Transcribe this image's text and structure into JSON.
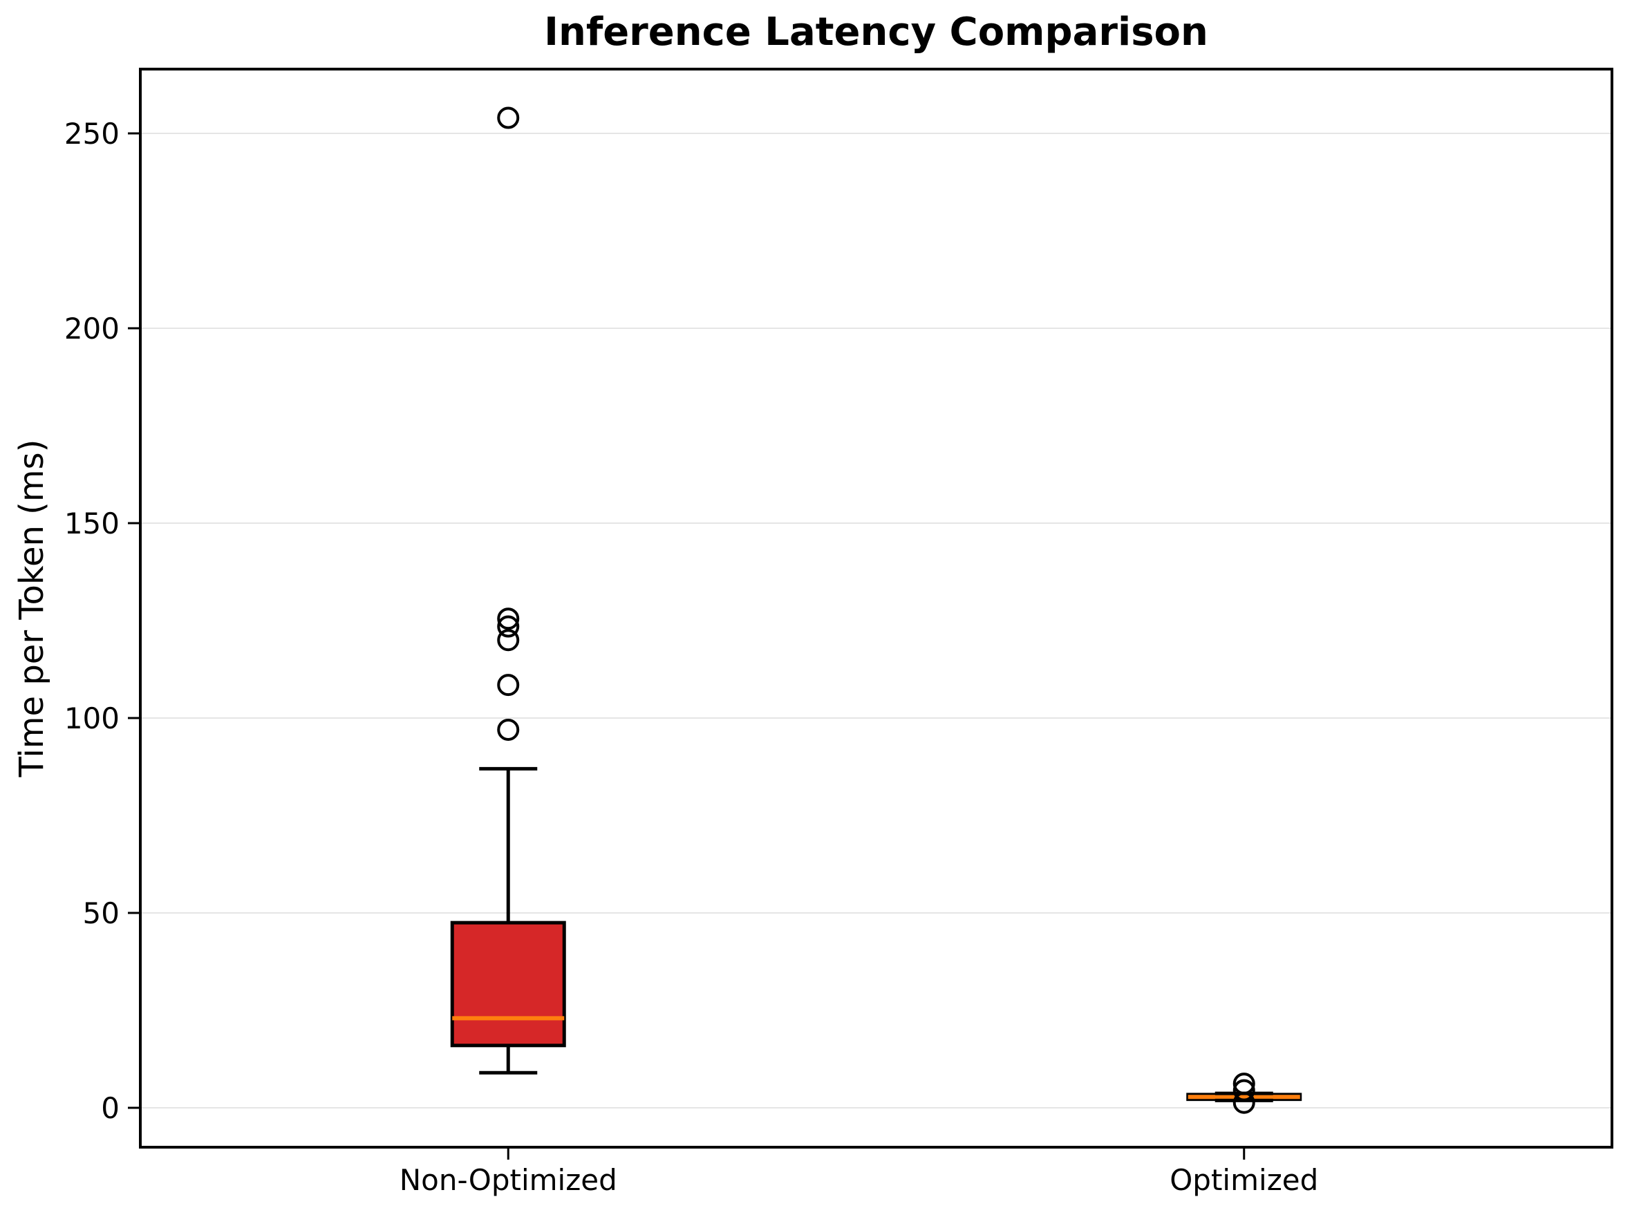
{
  "title": "Inference Latency Comparison",
  "ylabel": "Time per Token (ms)",
  "colors": {
    "box_fill": "#d62728",
    "median": "#ff7f0e",
    "stroke": "#000000",
    "grid": "#e5e5e5",
    "background": "#ffffff",
    "text": "#000000"
  },
  "chart_data": {
    "type": "box",
    "title": "Inference Latency Comparison",
    "ylabel": "Time per Token (ms)",
    "xlabel": "",
    "categories": [
      "Non-Optimized",
      "Optimized"
    ],
    "ylim": [
      -10.1,
      266.5
    ],
    "yticks": [
      0,
      50,
      100,
      150,
      200,
      250
    ],
    "grid": "horizontal",
    "legend": "none",
    "series": [
      {
        "name": "Non-Optimized",
        "x_frac": 0.25,
        "whisker_low": 9,
        "q1": 16,
        "median": 23,
        "q3": 47.5,
        "whisker_high": 87,
        "outliers": [
          97,
          108.5,
          120,
          123.5,
          125.5,
          254
        ]
      },
      {
        "name": "Optimized",
        "x_frac": 0.75,
        "whisker_low": 1.9,
        "q1": 2.2,
        "median": 2.8,
        "q3": 3.4,
        "whisker_high": 3.7,
        "outliers": [
          6.2,
          4.5,
          1.3
        ]
      }
    ]
  }
}
